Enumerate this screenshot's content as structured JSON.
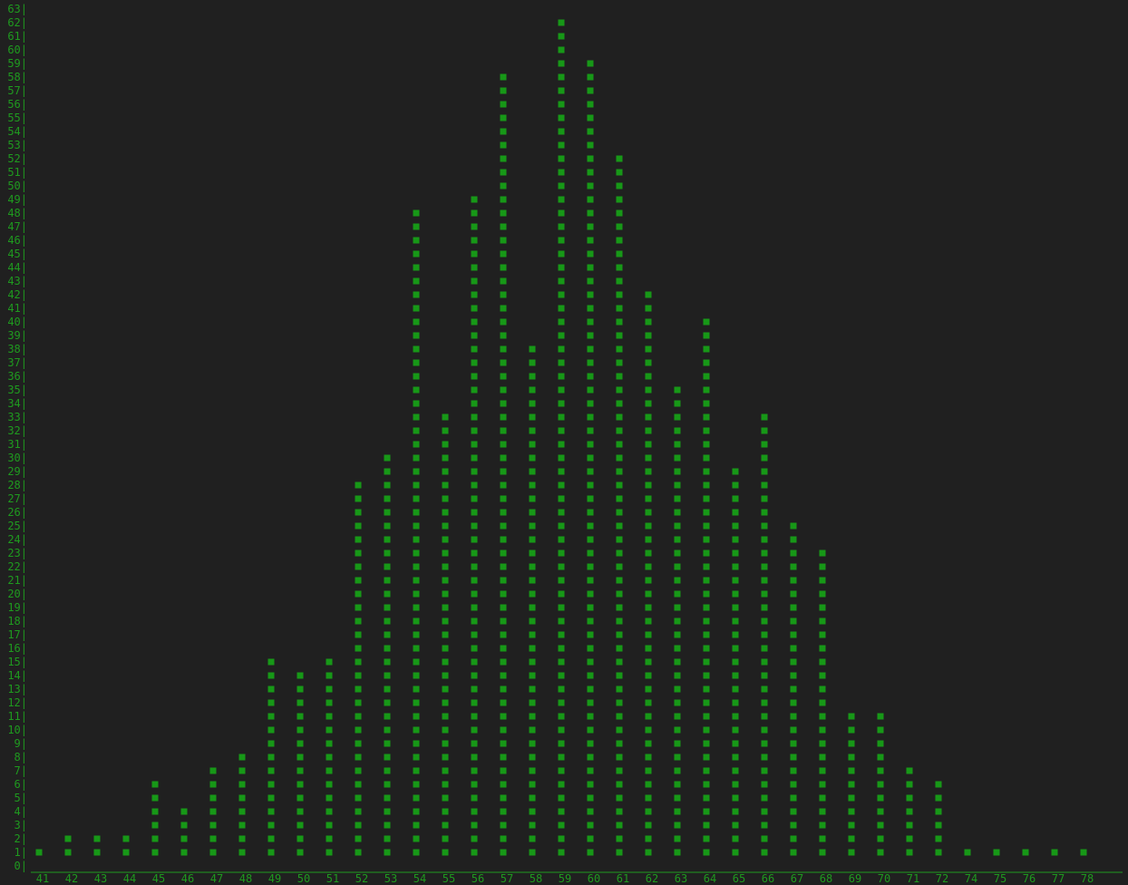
{
  "chart_data": {
    "type": "bar",
    "title": "",
    "xlabel": "",
    "ylabel": "",
    "ylim": [
      0,
      63
    ],
    "grid": false,
    "y_tick_suffix": "|",
    "categories": [
      "41",
      "42",
      "43",
      "44",
      "45",
      "46",
      "47",
      "48",
      "49",
      "50",
      "51",
      "52",
      "53",
      "54",
      "55",
      "56",
      "57",
      "58",
      "59",
      "60",
      "61",
      "62",
      "63",
      "64",
      "65",
      "66",
      "67",
      "68",
      "69",
      "70",
      "71",
      "72",
      "74",
      "75",
      "76",
      "77",
      "78"
    ],
    "values": [
      1,
      2,
      2,
      2,
      6,
      4,
      7,
      8,
      15,
      14,
      15,
      28,
      30,
      48,
      33,
      49,
      58,
      38,
      62,
      59,
      52,
      42,
      35,
      40,
      29,
      33,
      25,
      23,
      11,
      11,
      7,
      6,
      1,
      1,
      1,
      1,
      1
    ],
    "colors": {
      "text": "#1f9a1f",
      "mark": "#179817",
      "background": "#202020"
    }
  }
}
